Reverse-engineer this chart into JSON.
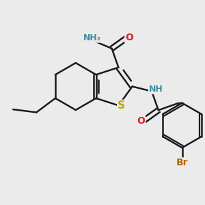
{
  "bg_color": "#ebebeb",
  "bond_color": "#1a1a1a",
  "bond_width": 1.8,
  "dbo": 0.055,
  "atom_colors": {
    "N": "#3a8fa0",
    "O": "#dd2222",
    "S": "#bbaa00",
    "Br": "#bb6600",
    "C": "#1a1a1a"
  },
  "font_size": 10,
  "fig_size": [
    3.0,
    3.0
  ],
  "dpi": 100,
  "xlim": [
    -2.2,
    2.5
  ],
  "ylim": [
    -2.8,
    1.5
  ]
}
